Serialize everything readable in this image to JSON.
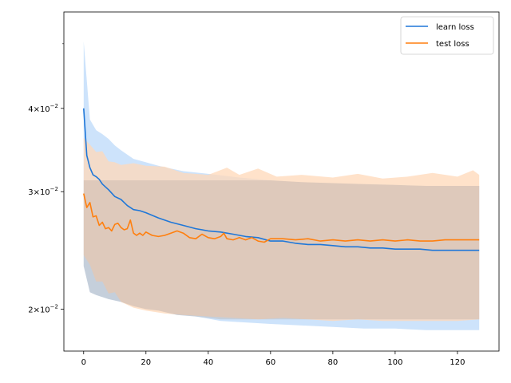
{
  "chart_data": {
    "type": "line",
    "title": "",
    "xlabel": "",
    "ylabel": "",
    "y_scale": "log",
    "xlim": [
      -6.35,
      133.35
    ],
    "ylim": [
      0.0173,
      0.0558
    ],
    "grid": false,
    "legend_position": "top-right",
    "x_ticks": [
      {
        "value": 0,
        "label": "0"
      },
      {
        "value": 20,
        "label": "20"
      },
      {
        "value": 40,
        "label": "40"
      },
      {
        "value": 60,
        "label": "60"
      },
      {
        "value": 80,
        "label": "80"
      },
      {
        "value": 100,
        "label": "100"
      },
      {
        "value": 120,
        "label": "120"
      }
    ],
    "y_ticks": [
      {
        "value": 0.02,
        "base": "2",
        "exp": "−2"
      },
      {
        "value": 0.03,
        "base": "3",
        "exp": "−2"
      },
      {
        "value": 0.04,
        "base": "4",
        "exp": "−2"
      }
    ],
    "y_minor_ticks": [
      0.05
    ],
    "series": [
      {
        "name": "learn loss",
        "color": "#1f77d8",
        "band_color": "#cde3fb",
        "points": [
          [
            0,
            0.04
          ],
          [
            1,
            0.034
          ],
          [
            2,
            0.0326
          ],
          [
            3,
            0.0318
          ],
          [
            4,
            0.0316
          ],
          [
            5,
            0.0313
          ],
          [
            6,
            0.0308
          ],
          [
            8,
            0.0302
          ],
          [
            10,
            0.0295
          ],
          [
            12,
            0.0292
          ],
          [
            14,
            0.0286
          ],
          [
            16,
            0.0282
          ],
          [
            18,
            0.0281
          ],
          [
            20,
            0.0279
          ],
          [
            24,
            0.0274
          ],
          [
            28,
            0.027
          ],
          [
            32,
            0.0267
          ],
          [
            36,
            0.0264
          ],
          [
            40,
            0.0262
          ],
          [
            44,
            0.0261
          ],
          [
            48,
            0.0259
          ],
          [
            52,
            0.0257
          ],
          [
            56,
            0.0256
          ],
          [
            60,
            0.0253
          ],
          [
            64,
            0.0253
          ],
          [
            68,
            0.0251
          ],
          [
            72,
            0.025
          ],
          [
            76,
            0.025
          ],
          [
            80,
            0.0249
          ],
          [
            84,
            0.0248
          ],
          [
            88,
            0.0248
          ],
          [
            92,
            0.0247
          ],
          [
            96,
            0.0247
          ],
          [
            100,
            0.0246
          ],
          [
            104,
            0.0246
          ],
          [
            108,
            0.0246
          ],
          [
            112,
            0.0245
          ],
          [
            116,
            0.0245
          ],
          [
            120,
            0.0245
          ],
          [
            124,
            0.0245
          ],
          [
            127,
            0.0245
          ]
        ],
        "upper": [
          [
            0,
            0.0504
          ],
          [
            2,
            0.0385
          ],
          [
            4,
            0.0371
          ],
          [
            6,
            0.0366
          ],
          [
            8,
            0.036
          ],
          [
            10,
            0.0352
          ],
          [
            12,
            0.0346
          ],
          [
            16,
            0.0336
          ],
          [
            20,
            0.0332
          ],
          [
            24,
            0.0328
          ],
          [
            28,
            0.0325
          ],
          [
            32,
            0.0322
          ],
          [
            40,
            0.0319
          ],
          [
            50,
            0.0315
          ],
          [
            60,
            0.0312
          ],
          [
            70,
            0.031
          ],
          [
            80,
            0.0309
          ],
          [
            90,
            0.0308
          ],
          [
            100,
            0.0307
          ],
          [
            110,
            0.0306
          ],
          [
            120,
            0.0306
          ],
          [
            127,
            0.0306
          ]
        ],
        "lower": [
          [
            0,
            0.0232
          ],
          [
            2,
            0.0212
          ],
          [
            4,
            0.021
          ],
          [
            8,
            0.0207
          ],
          [
            12,
            0.0205
          ],
          [
            16,
            0.0202
          ],
          [
            20,
            0.02
          ],
          [
            24,
            0.0199
          ],
          [
            30,
            0.0196
          ],
          [
            36,
            0.0195
          ],
          [
            44,
            0.0192
          ],
          [
            52,
            0.0191
          ],
          [
            60,
            0.019
          ],
          [
            70,
            0.0189
          ],
          [
            80,
            0.0188
          ],
          [
            90,
            0.0187
          ],
          [
            100,
            0.0187
          ],
          [
            110,
            0.0186
          ],
          [
            120,
            0.0186
          ],
          [
            127,
            0.0186
          ]
        ]
      },
      {
        "name": "test loss",
        "color": "#ff7f0e",
        "band_color": "#ffd8b8",
        "points": [
          [
            0,
            0.0298
          ],
          [
            1,
            0.0284
          ],
          [
            2,
            0.0289
          ],
          [
            3,
            0.0275
          ],
          [
            4,
            0.0276
          ],
          [
            5,
            0.0267
          ],
          [
            6,
            0.027
          ],
          [
            7,
            0.0264
          ],
          [
            8,
            0.0265
          ],
          [
            9,
            0.0262
          ],
          [
            10,
            0.0268
          ],
          [
            11,
            0.0269
          ],
          [
            12,
            0.0265
          ],
          [
            13,
            0.0263
          ],
          [
            14,
            0.0264
          ],
          [
            15,
            0.0272
          ],
          [
            16,
            0.026
          ],
          [
            17,
            0.0258
          ],
          [
            18,
            0.026
          ],
          [
            19,
            0.0258
          ],
          [
            20,
            0.0261
          ],
          [
            22,
            0.0258
          ],
          [
            24,
            0.0257
          ],
          [
            26,
            0.0258
          ],
          [
            28,
            0.026
          ],
          [
            30,
            0.0262
          ],
          [
            32,
            0.026
          ],
          [
            34,
            0.0256
          ],
          [
            36,
            0.0255
          ],
          [
            38,
            0.0259
          ],
          [
            40,
            0.0256
          ],
          [
            42,
            0.0255
          ],
          [
            44,
            0.0257
          ],
          [
            45,
            0.026
          ],
          [
            46,
            0.0255
          ],
          [
            48,
            0.0254
          ],
          [
            50,
            0.0256
          ],
          [
            52,
            0.0254
          ],
          [
            54,
            0.0256
          ],
          [
            56,
            0.0253
          ],
          [
            58,
            0.0252
          ],
          [
            60,
            0.0255
          ],
          [
            64,
            0.0255
          ],
          [
            68,
            0.0254
          ],
          [
            72,
            0.0255
          ],
          [
            76,
            0.0253
          ],
          [
            80,
            0.0254
          ],
          [
            84,
            0.0253
          ],
          [
            88,
            0.0254
          ],
          [
            92,
            0.0253
          ],
          [
            96,
            0.0254
          ],
          [
            100,
            0.0253
          ],
          [
            104,
            0.0254
          ],
          [
            108,
            0.0253
          ],
          [
            112,
            0.0253
          ],
          [
            116,
            0.0254
          ],
          [
            120,
            0.0254
          ],
          [
            124,
            0.0254
          ],
          [
            127,
            0.0254
          ]
        ],
        "upper": [
          [
            0,
            0.0361
          ],
          [
            2,
            0.0353
          ],
          [
            4,
            0.0344
          ],
          [
            6,
            0.0345
          ],
          [
            8,
            0.0333
          ],
          [
            10,
            0.0332
          ],
          [
            12,
            0.0329
          ],
          [
            16,
            0.0331
          ],
          [
            20,
            0.0328
          ],
          [
            26,
            0.0327
          ],
          [
            32,
            0.032
          ],
          [
            40,
            0.0318
          ],
          [
            46,
            0.0326
          ],
          [
            50,
            0.0318
          ],
          [
            56,
            0.0325
          ],
          [
            62,
            0.0316
          ],
          [
            70,
            0.0318
          ],
          [
            80,
            0.0315
          ],
          [
            88,
            0.0319
          ],
          [
            96,
            0.0314
          ],
          [
            104,
            0.0316
          ],
          [
            112,
            0.032
          ],
          [
            120,
            0.0316
          ],
          [
            125,
            0.0323
          ],
          [
            127,
            0.0318
          ]
        ],
        "lower": [
          [
            0,
            0.0241
          ],
          [
            2,
            0.0233
          ],
          [
            4,
            0.022
          ],
          [
            6,
            0.022
          ],
          [
            8,
            0.0211
          ],
          [
            10,
            0.0212
          ],
          [
            12,
            0.0205
          ],
          [
            16,
            0.0201
          ],
          [
            20,
            0.0199
          ],
          [
            26,
            0.0197
          ],
          [
            32,
            0.0196
          ],
          [
            40,
            0.0195
          ],
          [
            48,
            0.0194
          ],
          [
            56,
            0.0193
          ],
          [
            64,
            0.0194
          ],
          [
            72,
            0.0193
          ],
          [
            80,
            0.0192
          ],
          [
            88,
            0.0193
          ],
          [
            96,
            0.0192
          ],
          [
            104,
            0.0192
          ],
          [
            112,
            0.0192
          ],
          [
            120,
            0.0192
          ],
          [
            127,
            0.0193
          ]
        ]
      }
    ]
  }
}
